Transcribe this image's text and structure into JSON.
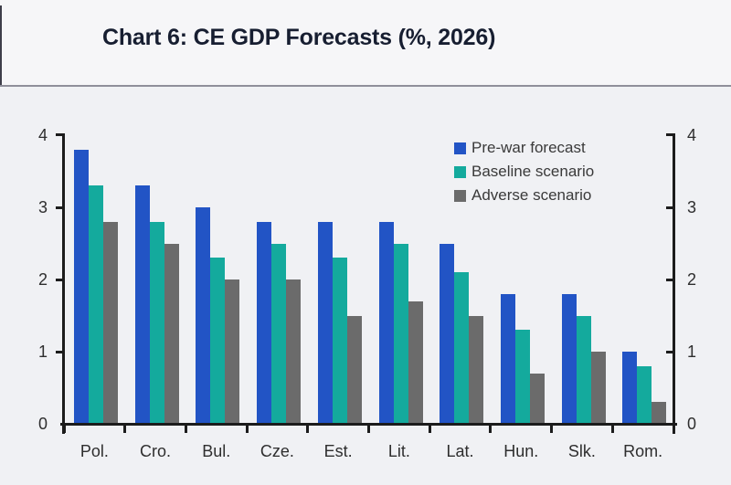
{
  "page": {
    "title": "Chart 6: CE GDP Forecasts (%, 2026)"
  },
  "legend": {
    "items": [
      {
        "label": "Pre-war forecast",
        "color": "#2254c5"
      },
      {
        "label": "Baseline scenario",
        "color": "#14aa9d"
      },
      {
        "label": "Adverse scenario",
        "color": "#6b6b6b"
      }
    ]
  },
  "chart_data": {
    "type": "bar",
    "title": "Chart 6: CE GDP Forecasts (%, 2026)",
    "categories": [
      "Pol.",
      "Cro.",
      "Bul.",
      "Cze.",
      "Est.",
      "Lit.",
      "Lat.",
      "Hun.",
      "Slk.",
      "Rom."
    ],
    "series": [
      {
        "name": "Pre-war forecast",
        "color": "#2254c5",
        "values": [
          3.8,
          3.3,
          3.0,
          2.8,
          2.8,
          2.8,
          2.5,
          1.8,
          1.8,
          1.0
        ]
      },
      {
        "name": "Baseline scenario",
        "color": "#14aa9d",
        "values": [
          3.3,
          2.8,
          2.3,
          2.5,
          2.3,
          2.5,
          2.1,
          1.3,
          1.5,
          0.8
        ]
      },
      {
        "name": "Adverse scenario",
        "color": "#6b6b6b",
        "values": [
          2.8,
          2.5,
          2.0,
          2.0,
          1.5,
          1.7,
          1.5,
          0.7,
          1.0,
          0.3
        ]
      }
    ],
    "xlabel": "",
    "ylabel": "",
    "ylim": [
      0,
      4
    ],
    "yticks": [
      0,
      1,
      2,
      3,
      4
    ],
    "grid": false,
    "legend_position": "top-right",
    "dual_axis": true
  },
  "colors": {
    "background": "#f0f1f4",
    "header_background": "#f6f6f8",
    "divider": "#8f8f9a",
    "axis": "#1c1c1c",
    "title_text": "#171e31",
    "tick_text": "#2e2e2e"
  }
}
